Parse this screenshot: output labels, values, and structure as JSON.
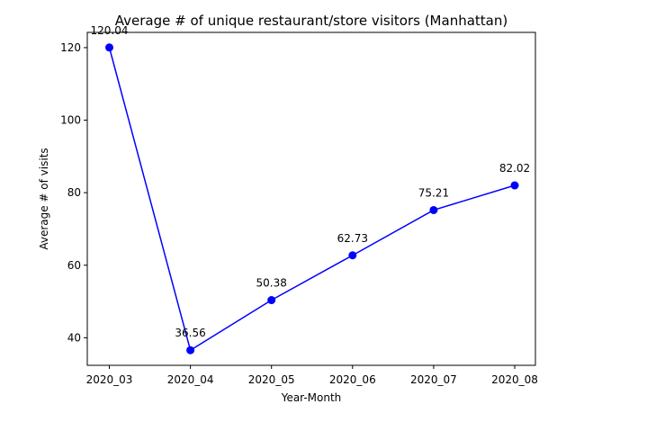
{
  "chart_data": {
    "type": "line",
    "title": "Average # of unique restaurant/store visitors (Manhattan)",
    "xlabel": "Year-Month",
    "ylabel": "Average # of visits",
    "categories": [
      "2020_03",
      "2020_04",
      "2020_05",
      "2020_06",
      "2020_07",
      "2020_08"
    ],
    "series": [
      {
        "values": [
          120.04,
          36.56,
          50.38,
          62.73,
          75.21,
          82.02
        ],
        "data_labels": [
          "120.04",
          "36.56",
          "50.38",
          "62.73",
          "75.21",
          "82.02"
        ],
        "color": "#0000ff",
        "marker": "circle"
      }
    ],
    "yticks": [
      40,
      60,
      80,
      100,
      120
    ],
    "ytick_labels": [
      "40",
      "60",
      "80",
      "100",
      "120"
    ],
    "ylim": [
      32.4,
      124.2
    ],
    "grid": false,
    "legend": "none"
  }
}
